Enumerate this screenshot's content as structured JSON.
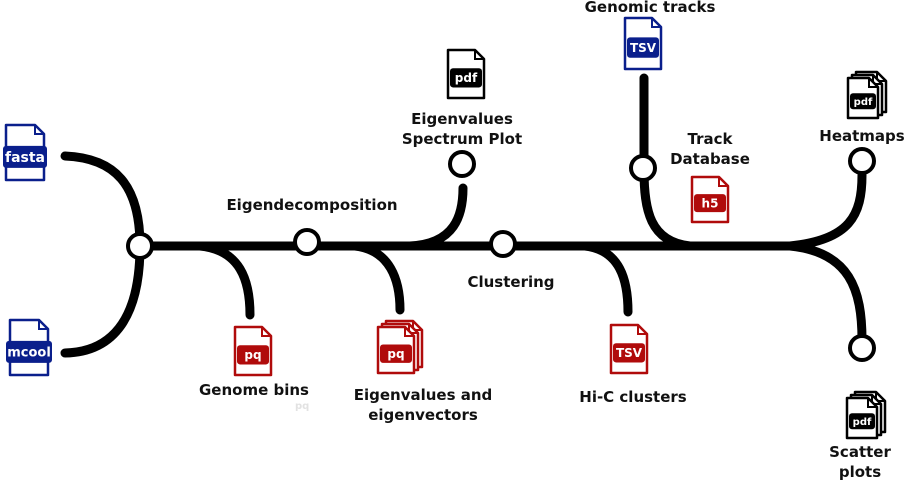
{
  "colors": {
    "line": "#000000",
    "input_blue": "#0a1f8c",
    "output_red": "#b00b0b",
    "pdf_black": "#000000"
  },
  "inputs": {
    "fasta": {
      "badge": "fasta"
    },
    "mcool": {
      "badge": "mcool"
    },
    "genomic_tracks": {
      "label": "Genomic tracks",
      "badge": "TSV"
    }
  },
  "stations": {
    "eigendecomposition": {
      "label": "Eigendecomposition"
    },
    "clustering": {
      "label": "Clustering"
    }
  },
  "outputs": {
    "genome_bins": {
      "label": "Genome bins",
      "badge": "pq",
      "faint": "pq"
    },
    "eigen_vectors": {
      "label_line1": "Eigenvalues and",
      "label_line2": "eigenvectors",
      "badge": "pq"
    },
    "spectrum_plot": {
      "label_line1": "Eigenvalues",
      "label_line2": "Spectrum Plot",
      "badge": "pdf"
    },
    "track_db": {
      "label_line1": "Track",
      "label_line2": "Database",
      "badge": "h5"
    },
    "hic_clusters": {
      "label": "Hi-C clusters",
      "badge": "TSV"
    },
    "heatmaps": {
      "label": "Heatmaps",
      "badge": "pdf"
    },
    "scatter": {
      "label_line1": "Scatter",
      "label_line2": "plots",
      "badge": "pdf"
    }
  }
}
